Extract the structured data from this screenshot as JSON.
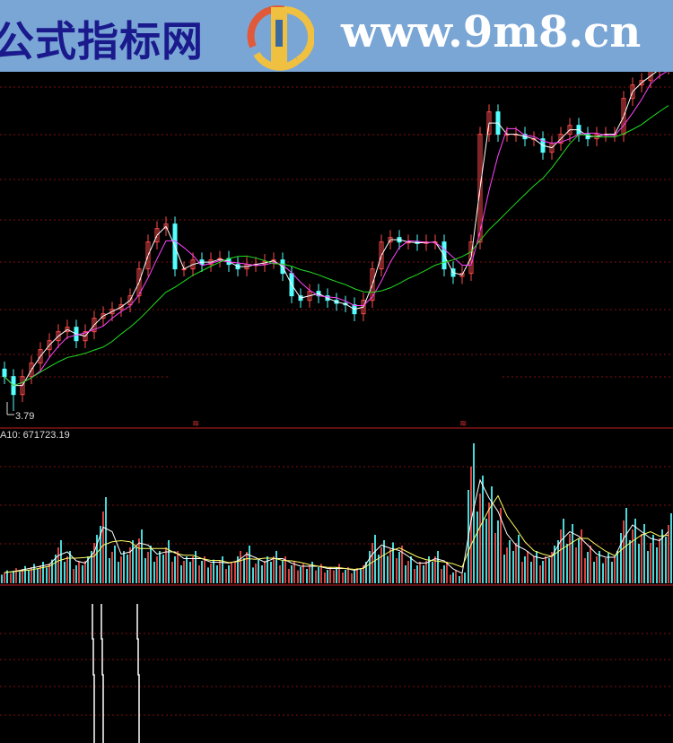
{
  "banner": {
    "cn_title": "公式指标网",
    "url": "www.9m8.cn",
    "logo_text": "www.9m8.cn"
  },
  "colors": {
    "up": "#ff4a4a",
    "down": "#54ffff",
    "ma5": "#ffffff",
    "ma10": "#ff44ff",
    "ma30": "#22dd22",
    "vol_ma1": "#ffffff",
    "vol_ma2": "#ffff66",
    "grid": "#801010",
    "signal": "#ffffff"
  },
  "main_panel": {
    "low_marker": "3.79"
  },
  "volume_panel": {
    "label": "A10: 671723.19"
  },
  "chart_data": {
    "type": "candlestick",
    "closes": [
      4.02,
      3.9,
      4.02,
      4.11,
      4.2,
      4.26,
      4.32,
      4.35,
      4.26,
      4.32,
      4.41,
      4.44,
      4.47,
      4.5,
      4.56,
      4.74,
      4.92,
      5.01,
      5.04,
      4.74,
      4.74,
      4.8,
      4.77,
      4.8,
      4.81,
      4.77,
      4.74,
      4.77,
      4.77,
      4.79,
      4.8,
      4.71,
      4.56,
      4.53,
      4.59,
      4.56,
      4.53,
      4.51,
      4.5,
      4.44,
      4.53,
      4.74,
      4.92,
      4.95,
      4.92,
      4.92,
      4.91,
      4.92,
      4.92,
      4.74,
      4.69,
      4.71,
      4.92,
      5.64,
      5.79,
      5.64,
      5.64,
      5.64,
      5.61,
      5.61,
      5.52,
      5.58,
      5.64,
      5.7,
      5.64,
      5.61,
      5.64,
      5.64,
      5.64,
      5.88,
      5.97,
      6.0,
      6.06,
      6.09,
      6.12
    ],
    "low_value": 3.79,
    "volumes": [
      240000,
      280000,
      320000,
      360000,
      400000,
      440000,
      800000,
      600000,
      400000,
      500000,
      900000,
      1600000,
      700000,
      600000,
      800000,
      1000000,
      700000,
      600000,
      800000,
      600000,
      500000,
      600000,
      500000,
      440000,
      500000,
      400000,
      600000,
      700000,
      440000,
      500000,
      600000,
      500000,
      400000,
      360000,
      400000,
      360000,
      300000,
      360000,
      300000,
      280000,
      400000,
      900000,
      800000,
      760000,
      700000,
      500000,
      400000,
      500000,
      600000,
      400000,
      240000,
      200000,
      2600000,
      2000000,
      1800000,
      1400000,
      800000,
      900000,
      600000,
      600000,
      500000,
      700000,
      1200000,
      1100000,
      1000000,
      700000,
      600000,
      560000,
      600000,
      1400000,
      1200000,
      1100000,
      900000,
      1000000,
      1300000
    ],
    "signal_indices": [
      10,
      11,
      15
    ],
    "moving_averages": [
      "MA5",
      "MA10",
      "MA30"
    ]
  }
}
